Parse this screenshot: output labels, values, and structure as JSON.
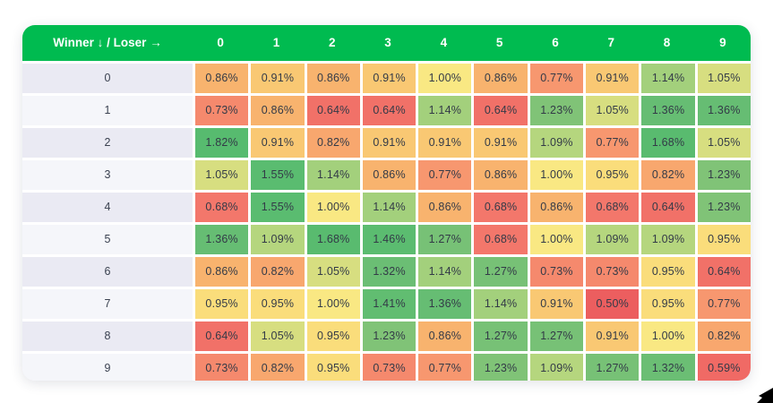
{
  "colors": {
    "header_bg": "#00BB50",
    "header_text": "#FFFFFF",
    "row_stripe_even": "#EAEAF3",
    "row_stripe_odd": "#F5F6FA",
    "cell_text": "#333A47",
    "card_bg": "#FFFFFF",
    "cursor_color": "#000000",
    "scale_stops": [
      [
        0.5,
        "#EC5E5F"
      ],
      [
        0.68,
        "#F3776B"
      ],
      [
        0.77,
        "#F7976F"
      ],
      [
        0.86,
        "#F8B36E"
      ],
      [
        0.91,
        "#F9C873"
      ],
      [
        0.95,
        "#FADD7B"
      ],
      [
        1.0,
        "#F9E883"
      ],
      [
        1.05,
        "#D7DE80"
      ],
      [
        1.09,
        "#B5D67E"
      ],
      [
        1.14,
        "#A3D07C"
      ],
      [
        1.23,
        "#80C377"
      ],
      [
        1.32,
        "#6BBE74"
      ],
      [
        1.46,
        "#5BBC70"
      ],
      [
        1.82,
        "#57BB6F"
      ]
    ]
  },
  "chart_data": {
    "type": "heatmap",
    "title": "",
    "corner_label": "Winner ↓ / Loser →",
    "col_headers": [
      "0",
      "1",
      "2",
      "3",
      "4",
      "5",
      "6",
      "7",
      "8",
      "9"
    ],
    "row_headers": [
      "0",
      "1",
      "2",
      "3",
      "4",
      "5",
      "6",
      "7",
      "8",
      "9"
    ],
    "value_unit": "%",
    "value_decimals": 2,
    "value_range": [
      0.5,
      1.82
    ],
    "values": [
      [
        0.86,
        0.91,
        0.86,
        0.91,
        1.0,
        0.86,
        0.77,
        0.91,
        1.14,
        1.05
      ],
      [
        0.73,
        0.86,
        0.64,
        0.64,
        1.14,
        0.64,
        1.23,
        1.05,
        1.36,
        1.36
      ],
      [
        1.82,
        0.91,
        0.82,
        0.91,
        0.91,
        0.91,
        1.09,
        0.77,
        1.68,
        1.05
      ],
      [
        1.05,
        1.55,
        1.14,
        0.86,
        0.77,
        0.86,
        1.0,
        0.95,
        0.82,
        1.23
      ],
      [
        0.68,
        1.55,
        1.0,
        1.14,
        0.86,
        0.68,
        0.86,
        0.68,
        0.64,
        1.23
      ],
      [
        1.36,
        1.09,
        1.68,
        1.46,
        1.27,
        0.68,
        1.0,
        1.09,
        1.09,
        0.95
      ],
      [
        0.86,
        0.82,
        1.05,
        1.32,
        1.14,
        1.27,
        0.73,
        0.73,
        0.95,
        0.64
      ],
      [
        0.95,
        0.95,
        1.0,
        1.41,
        1.36,
        1.14,
        0.91,
        0.5,
        0.95,
        0.77
      ],
      [
        0.64,
        1.05,
        0.95,
        1.23,
        0.86,
        1.27,
        1.27,
        0.91,
        1.0,
        0.82
      ],
      [
        0.73,
        0.82,
        0.95,
        0.73,
        0.77,
        1.23,
        1.09,
        1.27,
        1.32,
        0.59
      ]
    ]
  }
}
